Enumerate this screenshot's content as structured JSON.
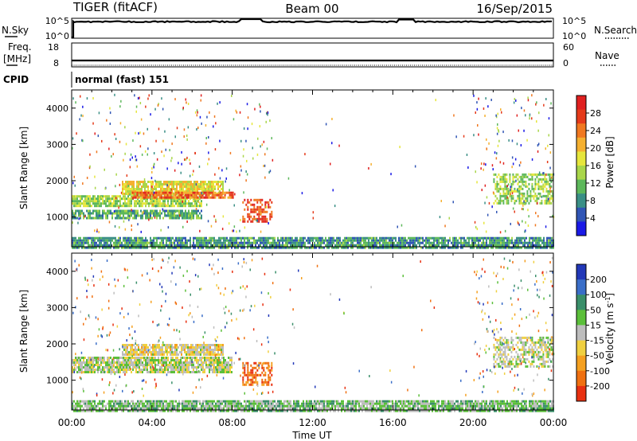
{
  "header": {
    "radar": "TIGER (fitACF)",
    "beam": "Beam 00",
    "date": "16/Sep/2015"
  },
  "summary": {
    "nsky_label": "N.Sky",
    "nsearch_label": "N.Search",
    "nsky_ticks": [
      "10^5",
      "10^0"
    ],
    "nsearch_ticks": [
      "10^5",
      "10^0"
    ],
    "freq_label": "Freq.",
    "freq_unit": "[MHz]",
    "freq_ticks": [
      "18",
      "8"
    ],
    "nave_label": "Nave",
    "nave_ticks": [
      "60",
      "0"
    ],
    "cpid_label": "CPID",
    "cpid_text": "normal (fast) 151"
  },
  "chart_data": [
    {
      "type": "heatmap",
      "quantity": "Power",
      "ylabel": "Slant Range [km]",
      "y_ticks": [
        1000,
        2000,
        3000,
        4000
      ],
      "ylim": [
        180,
        4500
      ],
      "colorbar_label": "Power [dB]",
      "colorbar_ticks": [
        4,
        8,
        12,
        16,
        20,
        24,
        28
      ],
      "colorbar_colors": [
        "#1a1ae6",
        "#3055b5",
        "#3a8f86",
        "#5db85b",
        "#a9d64a",
        "#e6e63c",
        "#f5b030",
        "#f07820",
        "#e53a1a",
        "#e02020"
      ],
      "echo_regions": [
        {
          "t_start": 0.0,
          "t_end": 6.5,
          "range_min": 1300,
          "range_max": 1600,
          "power_db": 14
        },
        {
          "t_start": 0.0,
          "t_end": 6.5,
          "range_min": 1000,
          "range_max": 1200,
          "power_db": 10
        },
        {
          "t_start": 2.5,
          "t_end": 7.5,
          "range_min": 1650,
          "range_max": 2000,
          "power_db": 18
        },
        {
          "t_start": 3.0,
          "t_end": 8.0,
          "range_min": 1550,
          "range_max": 1700,
          "power_db": 26
        },
        {
          "t_start": 8.5,
          "t_end": 10.0,
          "range_min": 900,
          "range_max": 1500,
          "power_db": 28
        },
        {
          "t_start": 21.0,
          "t_end": 24.0,
          "range_min": 1400,
          "range_max": 2200,
          "power_db": 14
        },
        {
          "t_start": 0.0,
          "t_end": 24.0,
          "range_min": 180,
          "range_max": 450,
          "power_db": 8
        }
      ]
    },
    {
      "type": "heatmap",
      "quantity": "Velocity",
      "ylabel": "Slant Range [km]",
      "xlabel": "Time UT",
      "x_ticks": [
        "00:00",
        "04:00",
        "08:00",
        "12:00",
        "16:00",
        "20:00",
        "00:00"
      ],
      "xlim_hours": [
        0,
        24
      ],
      "y_ticks": [
        1000,
        2000,
        3000,
        4000
      ],
      "ylim": [
        180,
        4500
      ],
      "colorbar_label": "Velocity [m s^-1]",
      "colorbar_unit_base": "Velocity [m s",
      "colorbar_unit_exp": "-1",
      "colorbar_unit_close": "]",
      "colorbar_ticks": [
        200,
        100,
        50,
        15,
        -15,
        -50,
        -100,
        -200
      ],
      "colorbar_colors": [
        "#2238b8",
        "#3a6ec8",
        "#3a8f6a",
        "#5bbf3a",
        "#bdbdbd",
        "#f0d040",
        "#f5a020",
        "#f07010",
        "#e83010"
      ],
      "echo_regions": [
        {
          "t_start": 0.0,
          "t_end": 8.0,
          "range_min": 1200,
          "range_max": 1650,
          "velocity": 0
        },
        {
          "t_start": 2.5,
          "t_end": 7.5,
          "range_min": 1700,
          "range_max": 2000,
          "velocity": -30
        },
        {
          "t_start": 8.5,
          "t_end": 10.0,
          "range_min": 900,
          "range_max": 1500,
          "velocity": -150
        },
        {
          "t_start": 21.0,
          "t_end": 24.0,
          "range_min": 1400,
          "range_max": 2200,
          "velocity": 0
        },
        {
          "t_start": 0.0,
          "t_end": 24.0,
          "range_min": 180,
          "range_max": 450,
          "velocity": 40
        }
      ]
    }
  ]
}
